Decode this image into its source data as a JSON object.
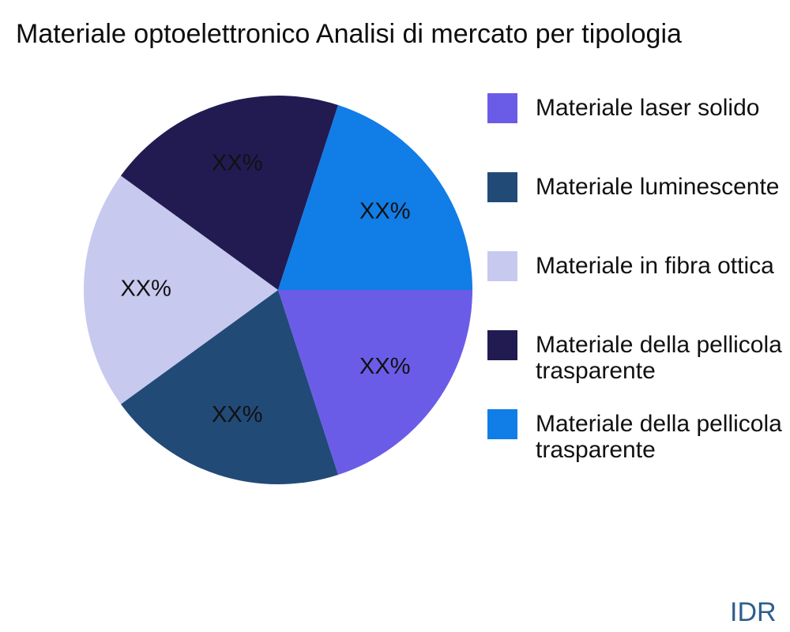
{
  "title": "Materiale optoelettronico Analisi di mercato per tipologia",
  "watermark": "IDR",
  "colors": {
    "background": "#ffffff",
    "title_text": "#0e0e0e",
    "legend_text": "#111111",
    "slice_label_text": "#111111",
    "watermark_text": "#2d5f8c"
  },
  "legend": {
    "position": "right",
    "items": [
      {
        "label": "Materiale laser solido",
        "lines": [
          "Materiale laser solido"
        ],
        "color": "#6B5CE8"
      },
      {
        "label": "Materiale luminescente",
        "lines": [
          "Materiale luminescente"
        ],
        "color": "#214A77"
      },
      {
        "label": "Materiale in fibra ottica",
        "lines": [
          "Materiale in fibra ottica"
        ],
        "color": "#C7C9EE"
      },
      {
        "label": "Materiale della pellicola trasparente",
        "lines": [
          "Materiale della pellicola",
          "trasparente"
        ],
        "color": "#211B52"
      },
      {
        "label": "Materiale della pellicola trasparente",
        "lines": [
          "Materiale della pellicola",
          "trasparente"
        ],
        "color": "#117DE6"
      }
    ]
  },
  "chart_data": {
    "type": "pie",
    "title": "Materiale optoelettronico Analisi di mercato per tipologia",
    "values_are_placeholder": true,
    "start_angle_deg": 0,
    "direction": "clockwise",
    "legend_position": "right",
    "slices": [
      {
        "name": "Materiale laser solido",
        "display_label": "XX%",
        "value": 20,
        "color": "#6B5CE8"
      },
      {
        "name": "Materiale luminescente",
        "display_label": "XX%",
        "value": 20,
        "color": "#214A77"
      },
      {
        "name": "Materiale in fibra ottica",
        "display_label": "XX%",
        "value": 20,
        "color": "#C7C9EE"
      },
      {
        "name": "Materiale della pellicola trasparente",
        "display_label": "XX%",
        "value": 20,
        "color": "#211B52"
      },
      {
        "name": "Materiale della pellicola trasparente",
        "display_label": "XX%",
        "value": 20,
        "color": "#117DE6"
      }
    ]
  }
}
